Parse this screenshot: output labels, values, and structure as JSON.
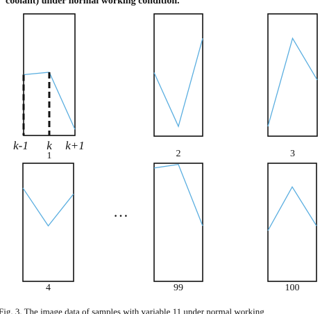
{
  "header_fragment": "coolant) under normal working condition.",
  "panels": [
    {
      "label": "1",
      "points": [
        [
          0,
          0.5
        ],
        [
          0.5,
          0.52
        ],
        [
          1,
          0.05
        ]
      ],
      "markers": [
        "k-1",
        "k",
        "k+1"
      ]
    },
    {
      "label": "2",
      "points": [
        [
          0,
          0.52
        ],
        [
          0.5,
          0.08
        ],
        [
          1,
          0.8
        ]
      ]
    },
    {
      "label": "3",
      "points": [
        [
          0,
          0.08
        ],
        [
          0.5,
          0.8
        ],
        [
          1,
          0.46
        ]
      ]
    },
    {
      "label": "4",
      "points": [
        [
          0,
          0.79
        ],
        [
          0.5,
          0.47
        ],
        [
          1,
          0.74
        ]
      ]
    },
    {
      "label": "99",
      "points": [
        [
          0,
          0.96
        ],
        [
          0.5,
          0.99
        ],
        [
          1,
          0.47
        ]
      ]
    },
    {
      "label": "100",
      "points": [
        [
          0,
          0.43
        ],
        [
          0.5,
          0.8
        ],
        [
          1,
          0.47
        ]
      ]
    }
  ],
  "ellipsis": "…",
  "caption": "Fig. 3.  The image data of samples with variable 11 under normal working"
}
